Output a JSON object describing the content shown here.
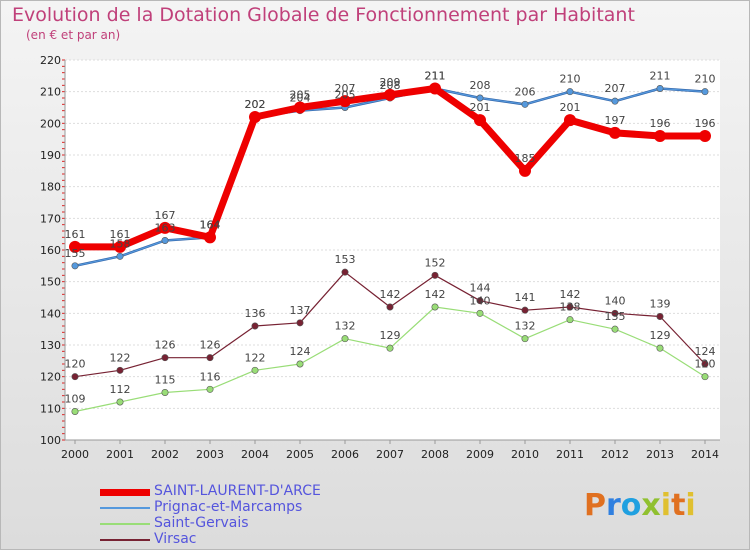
{
  "chart_data": {
    "type": "line",
    "title": "Evolution de la Dotation Globale de Fonctionnement par Habitant",
    "subtitle": "(en € et par an)",
    "xlabel": "",
    "ylabel": "",
    "ylim": [
      100,
      220
    ],
    "yticks": [
      100,
      110,
      120,
      130,
      140,
      150,
      160,
      170,
      180,
      190,
      200,
      210,
      220
    ],
    "categories": [
      "2000",
      "2001",
      "2002",
      "2003",
      "2004",
      "2005",
      "2006",
      "2007",
      "2008",
      "2009",
      "2010",
      "2011",
      "2012",
      "2013",
      "2014"
    ],
    "grid": "horizontal",
    "legend_position": "bottom-left",
    "series": [
      {
        "name": "SAINT-LAURENT-D'ARCE",
        "color": "#ee0000",
        "values": [
          161,
          161,
          167,
          164,
          202,
          205,
          207,
          209,
          211,
          201,
          185,
          201,
          197,
          196,
          196
        ]
      },
      {
        "name": "Prignac-et-Marcamps",
        "color": "#5599dd",
        "values": [
          155,
          158,
          163,
          164,
          202,
          204,
          205,
          208,
          211,
          208,
          206,
          210,
          207,
          211,
          210
        ]
      },
      {
        "name": "Saint-Gervais",
        "color": "#99dd77",
        "values": [
          109,
          112,
          115,
          116,
          122,
          124,
          132,
          129,
          142,
          140,
          132,
          138,
          135,
          129,
          120
        ]
      },
      {
        "name": "Virsac",
        "color": "#772233",
        "values": [
          120,
          122,
          126,
          126,
          136,
          137,
          153,
          142,
          152,
          144,
          141,
          142,
          140,
          139,
          124
        ]
      }
    ]
  },
  "branding": {
    "logo_text": "Proxiti"
  }
}
